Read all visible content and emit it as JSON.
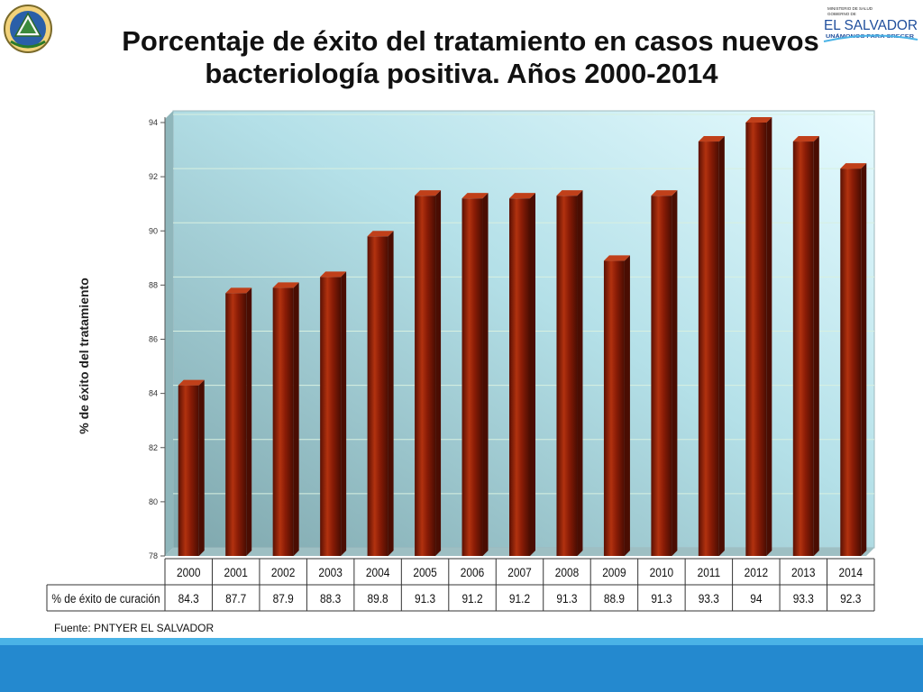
{
  "header": {
    "title_line1": "Porcentaje de éxito del tratamiento en casos nuevos",
    "title_line2": "bacteriología positiva. Años 2000-2014",
    "logo_text": {
      "ministry": "MINISTERIO DE SALUD",
      "government": "GOBIERNO DE",
      "country": "EL SALVADOR",
      "motto": "UNÁMONOS PARA CRECER"
    }
  },
  "chart_data": {
    "type": "bar",
    "title": "Porcentaje de éxito del tratamiento en casos nuevos bacteriología positiva. Años 2000-2014",
    "ylabel": "% de éxito del tratamiento",
    "xlabel": "",
    "categories": [
      "2000",
      "2001",
      "2002",
      "2003",
      "2004",
      "2005",
      "2006",
      "2007",
      "2008",
      "2009",
      "2010",
      "2011",
      "2012",
      "2013",
      "2014"
    ],
    "series": [
      {
        "name": "% de éxito de curación",
        "values": [
          84.3,
          87.7,
          87.9,
          88.3,
          89.8,
          91.3,
          91.2,
          91.2,
          91.3,
          88.9,
          91.3,
          93.3,
          94,
          93.3,
          92.3
        ]
      }
    ],
    "ylim": [
      78,
      94
    ],
    "yticks": [
      78,
      80,
      82,
      84,
      86,
      88,
      90,
      92,
      94
    ],
    "grid": true,
    "legend": "none",
    "data_table": true,
    "colors": {
      "bar": "#8a1c06",
      "bar_side": "#5c1204",
      "plot_bg_dark": "#7fa7ad",
      "plot_bg_light": "#e6fbff",
      "grid": "#d8f0e0"
    }
  },
  "footer": {
    "source": "Fuente: PNTYER EL SALVADOR"
  }
}
